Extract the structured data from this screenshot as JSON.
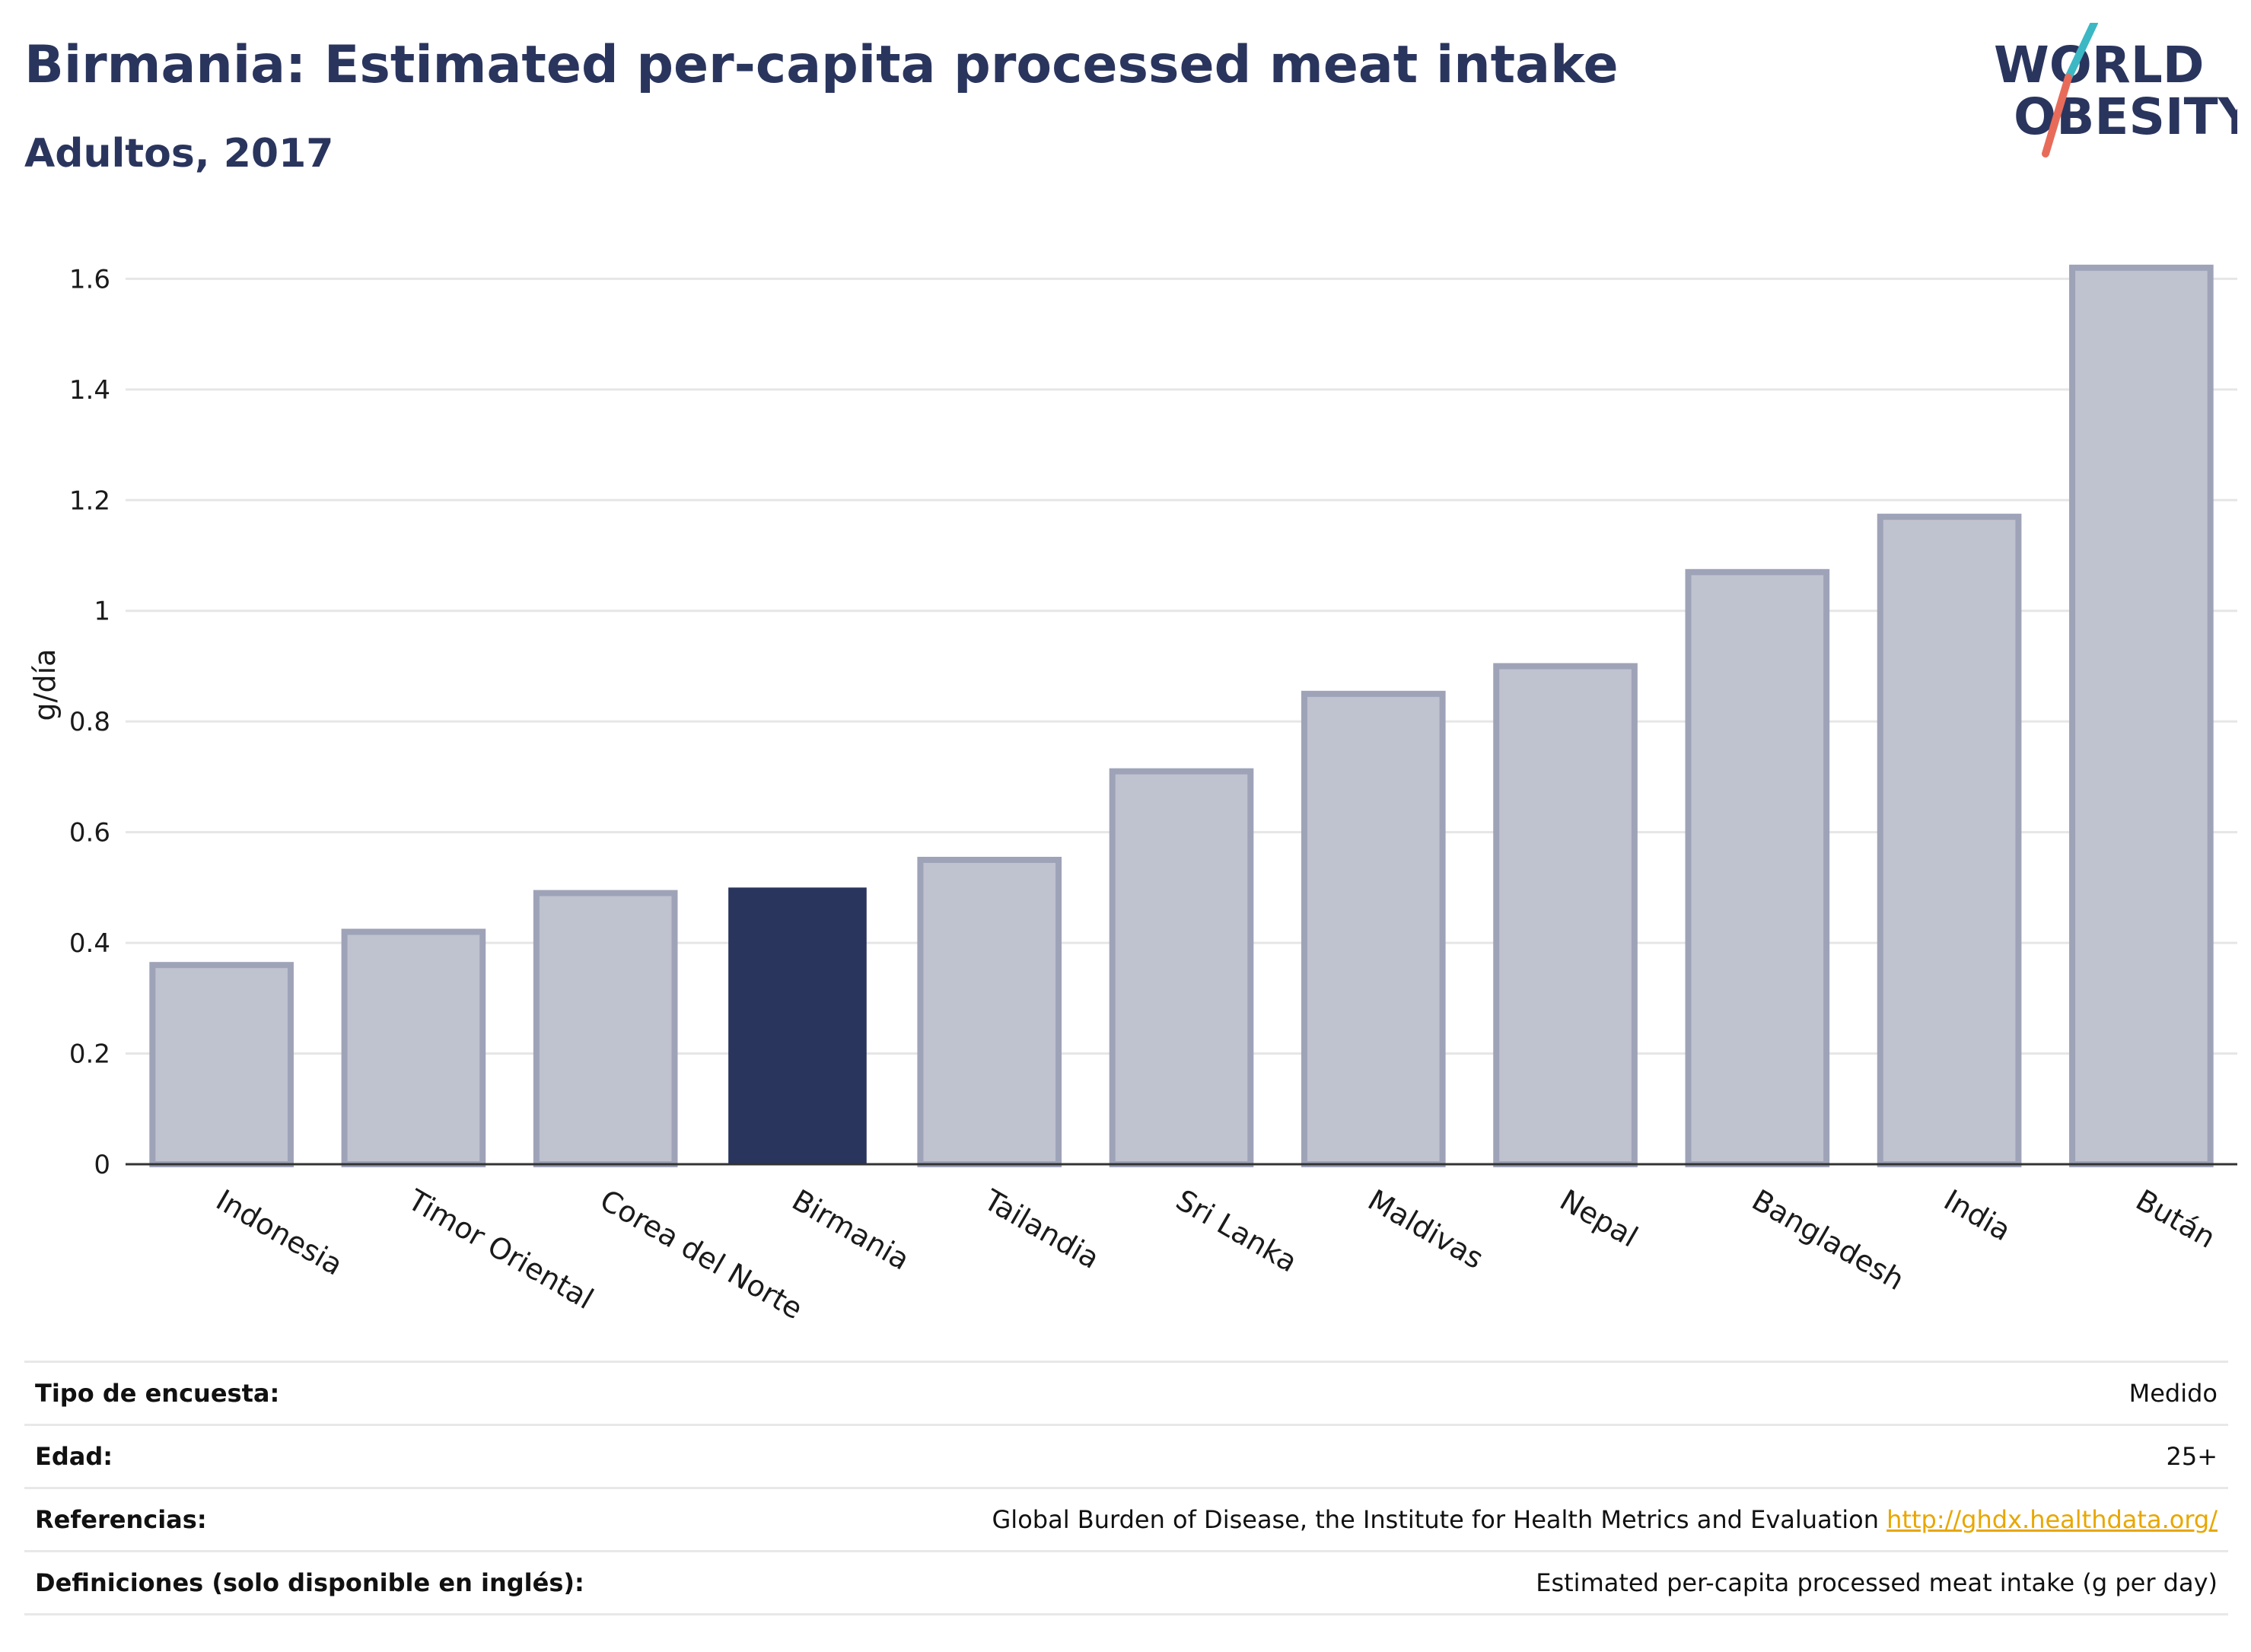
{
  "title": "Birmania: Estimated per-capita processed meat intake",
  "subtitle": "Adultos, 2017",
  "logo": {
    "line1": "WORLD",
    "line2": "OBESITY"
  },
  "colors": {
    "highlight": "#2a355e",
    "bar": "#bfc2cf",
    "bar_edge": "#9ea3b8",
    "link": "#e8a700"
  },
  "chart_data": {
    "type": "bar",
    "title": "Birmania: Estimated per-capita processed meat intake",
    "subtitle": "Adultos, 2017",
    "xlabel": "",
    "ylabel": "g/día",
    "ylim": [
      0,
      1.65
    ],
    "yticks": [
      0,
      0.2,
      0.4,
      0.6,
      0.8,
      1,
      1.2,
      1.4,
      1.6
    ],
    "ytick_labels": [
      "0",
      "0.2",
      "0.4",
      "0.6",
      "0.8",
      "1",
      "1.2",
      "1.4",
      "1.6"
    ],
    "grid": true,
    "highlight": "Birmania",
    "categories": [
      "Indonesia",
      "Timor Oriental",
      "Corea del Norte",
      "Birmania",
      "Tailandia",
      "Sri Lanka",
      "Maldivas",
      "Nepal",
      "Bangladesh",
      "India",
      "Bután"
    ],
    "values": [
      0.36,
      0.42,
      0.49,
      0.5,
      0.55,
      0.71,
      0.85,
      0.9,
      1.07,
      1.17,
      1.62
    ]
  },
  "meta": [
    {
      "key": "Tipo de encuesta:",
      "value": "Medido"
    },
    {
      "key": "Edad:",
      "value": "25+"
    },
    {
      "key": "Referencias:",
      "value": "Global Burden of Disease, the Institute for Health Metrics and Evaluation",
      "link": "http://ghdx.healthdata.org/"
    },
    {
      "key": "Definiciones (solo disponible en inglés):",
      "value": "Estimated per-capita processed meat intake (g per day)"
    }
  ]
}
